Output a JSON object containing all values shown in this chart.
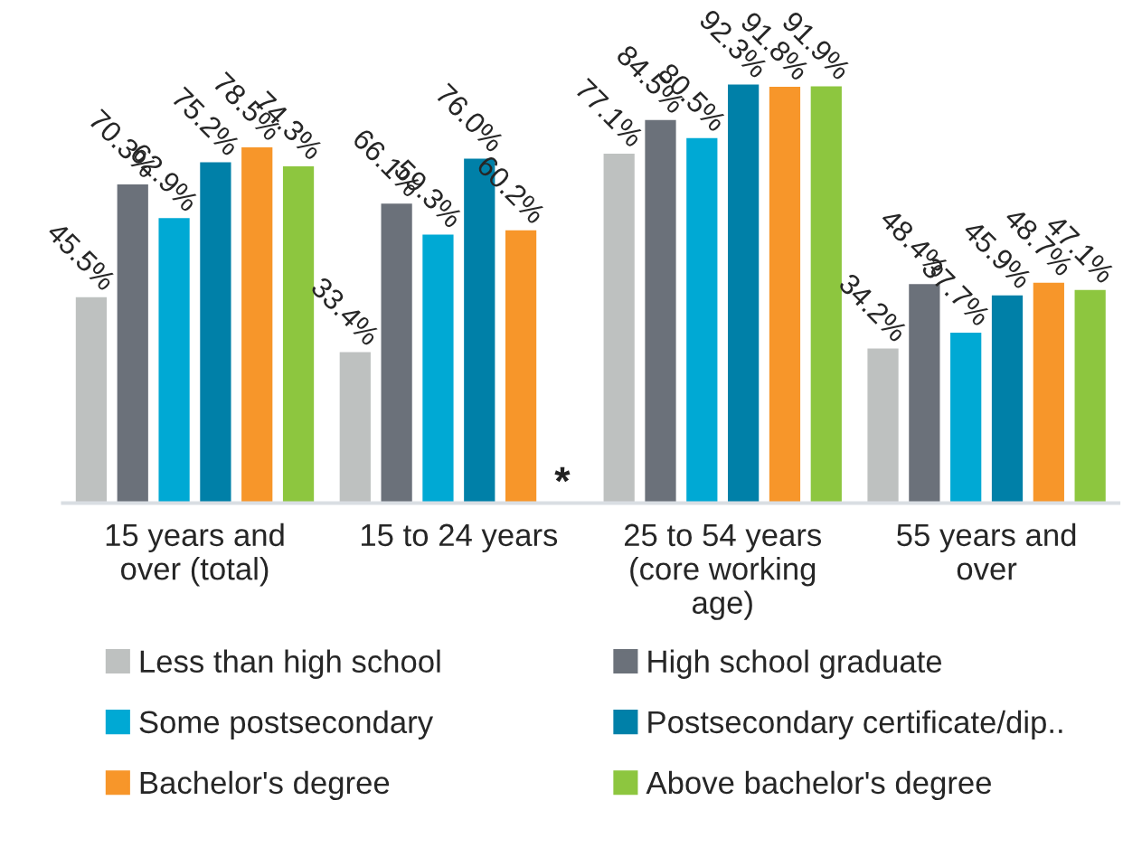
{
  "chart_data": {
    "type": "bar",
    "categories": [
      "15 years and\nover (total)",
      "15 to 24 years",
      "25 to 54 years\n(core working\nage)",
      "55 years and\nover"
    ],
    "series": [
      {
        "name": "Less than high school",
        "color": "#bec1c0",
        "values": [
          45.5,
          33.4,
          77.1,
          34.2
        ],
        "value_labels": [
          "45.5%",
          "33.4%",
          "77.1%",
          "34.2%"
        ]
      },
      {
        "name": "High school graduate",
        "color": "#6b717a",
        "values": [
          70.3,
          66.1,
          84.5,
          48.4
        ],
        "value_labels": [
          "70.3%",
          "66.1%",
          "84.5%",
          "48.4%"
        ]
      },
      {
        "name": "Some postsecondary",
        "color": "#00a9d4",
        "values": [
          62.9,
          59.3,
          80.5,
          37.7
        ],
        "value_labels": [
          "62.9%",
          "59.3%",
          "80.5%",
          "37.7%"
        ]
      },
      {
        "name": "Postsecondary certificate/dip..",
        "color": "#0080a8",
        "values": [
          75.2,
          76.0,
          92.3,
          45.9
        ],
        "value_labels": [
          "75.2%",
          "76.0%",
          "92.3%",
          "45.9%"
        ]
      },
      {
        "name": "Bachelor's degree",
        "color": "#f7962a",
        "values": [
          78.5,
          60.2,
          91.8,
          48.7
        ],
        "value_labels": [
          "78.5%",
          "60.2%",
          "91.8%",
          "48.7%"
        ]
      },
      {
        "name": "Above bachelor's degree",
        "color": "#8dc63f",
        "values": [
          74.3,
          null,
          91.9,
          47.1
        ],
        "value_labels": [
          "74.3%",
          null,
          "91.9%",
          "47.1%"
        ]
      }
    ],
    "annotations": [
      {
        "text": "*",
        "x": "15 to 24 years",
        "y": 0
      }
    ],
    "legend": "bottom",
    "grid": false
  }
}
